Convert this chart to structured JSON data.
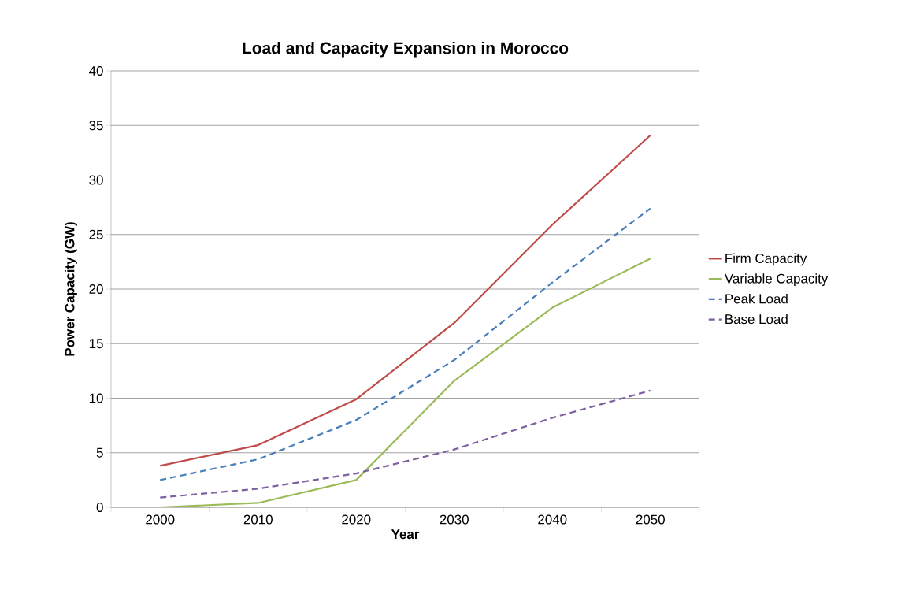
{
  "chart_data": {
    "type": "line",
    "title": "Load and Capacity Expansion in Morocco",
    "xlabel": "Year",
    "ylabel": "Power Capacity (GW)",
    "categories": [
      "2000",
      "2010",
      "2020",
      "2030",
      "2040",
      "2050"
    ],
    "series": [
      {
        "name": "Firm Capacity",
        "color": "#be4b48",
        "line_style": "solid",
        "values": [
          3.8,
          5.7,
          9.9,
          16.9,
          25.9,
          34.1
        ]
      },
      {
        "name": "Variable Capacity",
        "color": "#9bbb59",
        "line_style": "solid",
        "values": [
          0,
          0.4,
          2.5,
          11.6,
          18.3,
          22.8
        ]
      },
      {
        "name": "Peak Load",
        "color": "#4a7ebb",
        "line_style": "dashed",
        "values": [
          2.5,
          4.4,
          8.0,
          13.5,
          20.6,
          27.4
        ]
      },
      {
        "name": "Base Load",
        "color": "#7d60a0",
        "line_style": "dashed",
        "values": [
          0.9,
          1.7,
          3.1,
          5.3,
          8.2,
          10.7
        ]
      }
    ],
    "ylim": [
      0,
      40
    ],
    "yticks": [
      0,
      5,
      10,
      15,
      20,
      25,
      30,
      35,
      40
    ],
    "grid": "y",
    "legend": "right",
    "marker": "none"
  }
}
